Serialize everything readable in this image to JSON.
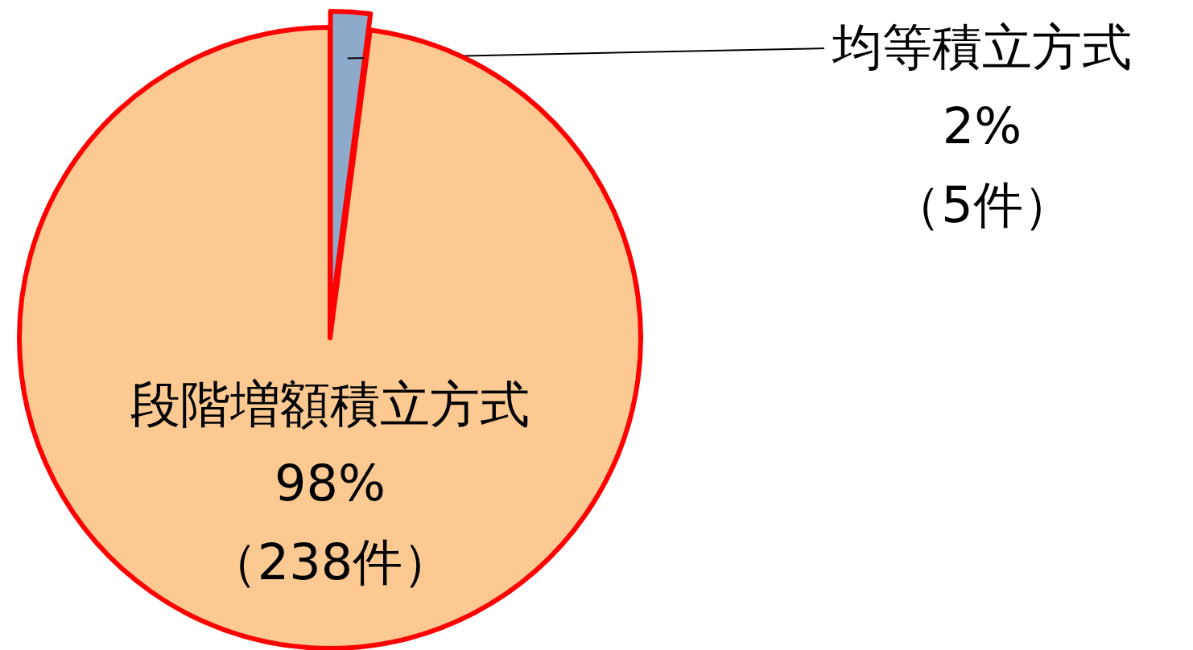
{
  "chart_data": {
    "type": "pie",
    "categories": [
      "均等積立方式",
      "段階増額積立方式"
    ],
    "values": [
      5,
      238
    ],
    "colors": [
      "#8eaacb",
      "#fbc991"
    ],
    "value_labels": [
      "2%\n（5件）",
      "98%\n（238件）"
    ]
  }
}
